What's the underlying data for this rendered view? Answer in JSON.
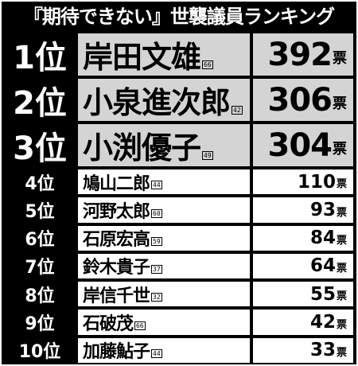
{
  "title": "『期待できない』世襲議員ランキング",
  "vote_unit": "票",
  "rows": [
    {
      "rank": "1位",
      "name": "岸田文雄",
      "age": "66",
      "votes": "392"
    },
    {
      "rank": "2位",
      "name": "小泉進次郎",
      "age": "42",
      "votes": "306"
    },
    {
      "rank": "3位",
      "name": "小渕優子",
      "age": "49",
      "votes": "304"
    },
    {
      "rank": "4位",
      "name": "鳩山二郎",
      "age": "44",
      "votes": "110"
    },
    {
      "rank": "5位",
      "name": "河野太郎",
      "age": "60",
      "votes": "93"
    },
    {
      "rank": "6位",
      "name": "石原宏高",
      "age": "59",
      "votes": "84"
    },
    {
      "rank": "7位",
      "name": "鈴木貴子",
      "age": "37",
      "votes": "64"
    },
    {
      "rank": "8位",
      "name": "岸信千世",
      "age": "32",
      "votes": "55"
    },
    {
      "rank": "9位",
      "name": "石破茂",
      "age": "66",
      "votes": "42"
    },
    {
      "rank": "10位",
      "name": "加藤鮎子",
      "age": "44",
      "votes": "33"
    }
  ]
}
